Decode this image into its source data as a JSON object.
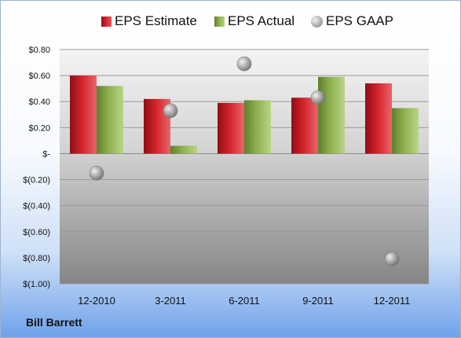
{
  "chart_data": {
    "type": "bar",
    "categories": [
      "12-2010",
      "3-2011",
      "6-2011",
      "9-2011",
      "12-2011"
    ],
    "series": [
      {
        "name": "EPS Estimate",
        "kind": "bar",
        "color": "#d3222b",
        "values": [
          0.6,
          0.42,
          0.39,
          0.43,
          0.54
        ]
      },
      {
        "name": "EPS Actual",
        "kind": "bar",
        "color": "#8db04f",
        "values": [
          0.52,
          0.06,
          0.41,
          0.59,
          0.35
        ]
      },
      {
        "name": "EPS GAAP",
        "kind": "scatter",
        "color": "#a9a9a9",
        "values": [
          -0.15,
          0.33,
          0.69,
          0.43,
          -0.81
        ]
      }
    ],
    "ylim": [
      -1.0,
      0.8
    ],
    "yticks": [
      0.8,
      0.6,
      0.4,
      0.2,
      0.0,
      -0.2,
      -0.4,
      -0.6,
      -0.8,
      -1.0
    ],
    "ytick_labels": [
      "$0.80",
      "$0.60",
      "$0.40",
      "$0.20",
      "$-",
      "$(0.20)",
      "$(0.40)",
      "$(0.60)",
      "$(0.80)",
      "$(1.00)"
    ],
    "legend_position": "top",
    "grid": true
  },
  "company": "Bill Barrett"
}
